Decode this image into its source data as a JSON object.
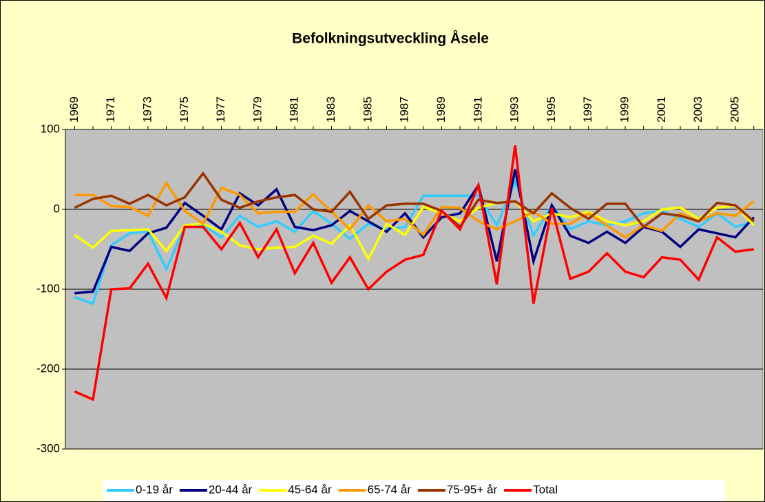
{
  "chart_data": {
    "type": "line",
    "title": "Befolkningsutveckling Åsele",
    "categories": [
      "1969",
      null,
      "1971",
      null,
      "1973",
      null,
      "1975",
      null,
      "1977",
      null,
      "1979",
      null,
      "1981",
      null,
      "1983",
      null,
      "1985",
      null,
      "1987",
      null,
      "1989",
      null,
      "1991",
      null,
      "1993",
      null,
      "1995",
      null,
      "1997",
      null,
      "1999",
      null,
      "2001",
      null,
      "2003",
      null,
      "2005",
      null
    ],
    "series": [
      {
        "name": "0-19 år",
        "color": "#33ccff",
        "values": [
          -110,
          -118,
          -45,
          -30,
          -28,
          -75,
          -22,
          -20,
          -35,
          -8,
          -22,
          -15,
          -28,
          -2,
          -18,
          -37,
          -18,
          -25,
          -22,
          17,
          17,
          17,
          17,
          -20,
          35,
          -33,
          5,
          -25,
          -15,
          -20,
          -15,
          -5,
          -2,
          -12,
          -22,
          -5,
          -22,
          -15
        ]
      },
      {
        "name": "20-44 år",
        "color": "#000080",
        "values": [
          -105,
          -103,
          -47,
          -52,
          -30,
          -23,
          8,
          -8,
          -25,
          20,
          5,
          25,
          -22,
          -26,
          -20,
          -2,
          -15,
          -28,
          -5,
          -35,
          -10,
          -5,
          30,
          -65,
          50,
          -65,
          5,
          -33,
          -42,
          -28,
          -42,
          -22,
          -28,
          -47,
          -25,
          -30,
          -35,
          -10
        ]
      },
      {
        "name": "45-64 år",
        "color": "#ffff00",
        "values": [
          -32,
          -48,
          -27,
          -26,
          -25,
          -52,
          -20,
          -18,
          -28,
          -45,
          -50,
          -48,
          -47,
          -33,
          -43,
          -20,
          -62,
          -18,
          -32,
          3,
          -5,
          -15,
          2,
          8,
          10,
          -15,
          -5,
          -10,
          -3,
          -15,
          -20,
          -15,
          0,
          2,
          -12,
          2,
          5,
          -20
        ]
      },
      {
        "name": "65-74 år",
        "color": "#ff9900",
        "values": [
          18,
          18,
          4,
          3,
          -8,
          33,
          -2,
          -18,
          27,
          18,
          -5,
          -3,
          -3,
          19,
          -3,
          -25,
          5,
          -15,
          -12,
          -32,
          3,
          2,
          -15,
          -25,
          -15,
          -3,
          -18,
          -18,
          -5,
          -20,
          -35,
          -20,
          -27,
          -5,
          -15,
          -5,
          -8,
          10
        ]
      },
      {
        "name": "75-95+ år",
        "color": "#993300",
        "values": [
          2,
          13,
          17,
          7,
          18,
          5,
          15,
          45,
          12,
          2,
          10,
          15,
          18,
          0,
          -3,
          22,
          -12,
          5,
          7,
          7,
          -2,
          -22,
          12,
          8,
          10,
          -5,
          20,
          2,
          -12,
          7,
          7,
          -22,
          -5,
          -8,
          -15,
          8,
          5,
          -15
        ]
      },
      {
        "name": "Total",
        "color": "#ff0000",
        "values": [
          -228,
          -238,
          -100,
          -99,
          -68,
          -111,
          -22,
          -22,
          -50,
          -17,
          -60,
          -25,
          -80,
          -42,
          -92,
          -60,
          -100,
          -78,
          -63,
          -57,
          -2,
          -25,
          30,
          -94,
          80,
          -118,
          2,
          -87,
          -78,
          -55,
          -78,
          -85,
          -60,
          -63,
          -88,
          -35,
          -53,
          -50
        ]
      }
    ],
    "ylim": [
      -300,
      100
    ],
    "yticks": [
      100,
      0,
      -100,
      -200,
      -300
    ],
    "grid": true,
    "legend": "bottom"
  }
}
